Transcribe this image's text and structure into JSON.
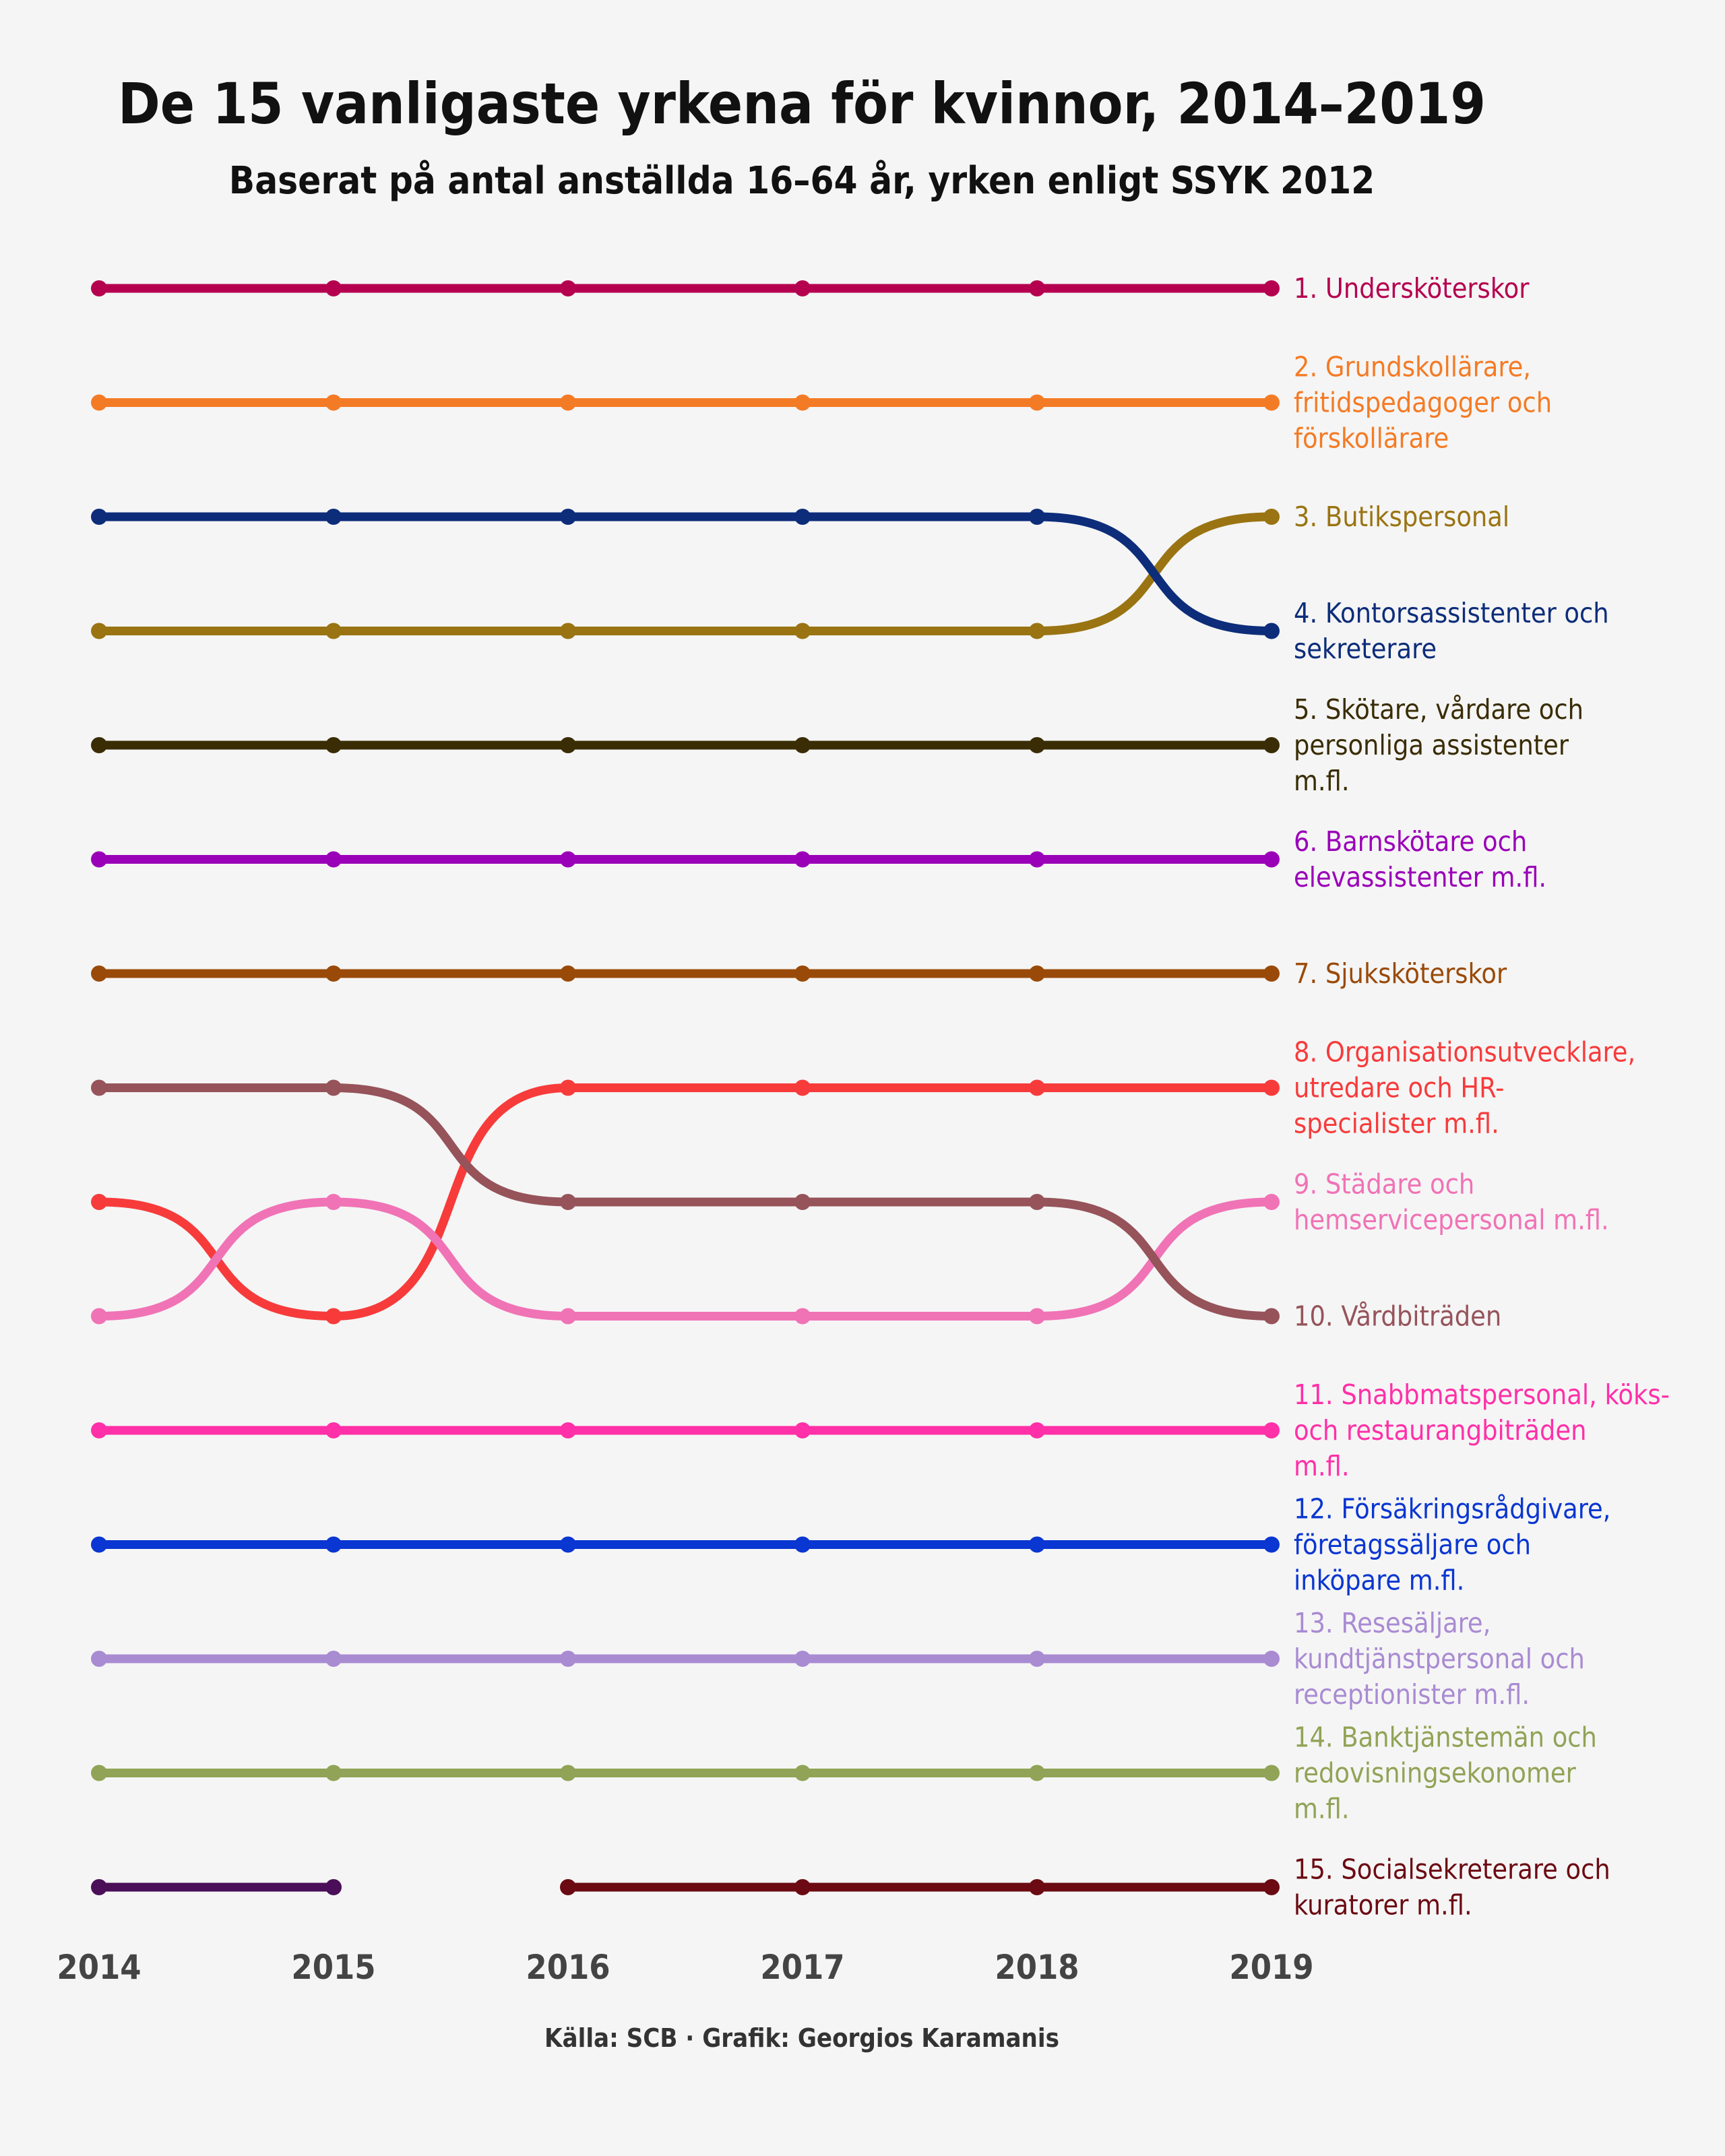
{
  "chart_data": {
    "type": "line",
    "subtype": "bump",
    "title": "De 15 vanligaste yrkena för kvinnor, 2014–2019",
    "subtitle": "Baserat på antal anställda 16–64 år, yrken enligt SSYK 2012",
    "caption": "Källa: SCB · Grafik: Georgios Karamanis",
    "x": [
      2014,
      2015,
      2016,
      2017,
      2018,
      2019
    ],
    "y_axis": "rank (1 at top)",
    "ylim": [
      1,
      15
    ],
    "grid": false,
    "legend": "labels at right end of lines",
    "series": [
      {
        "key": "s1",
        "label_lines": [
          "1. Undersköterskor"
        ],
        "color": "#b5004f",
        "ranks": [
          1,
          1,
          1,
          1,
          1,
          1
        ]
      },
      {
        "key": "s2",
        "label_lines": [
          "2. Grundskollärare,",
          "fritidspedagoger och",
          "förskollärare"
        ],
        "color": "#f47b25",
        "ranks": [
          2,
          2,
          2,
          2,
          2,
          2
        ]
      },
      {
        "key": "s3",
        "label_lines": [
          "3. Butikspersonal"
        ],
        "color": "#9a7412",
        "ranks": [
          4,
          4,
          4,
          4,
          4,
          3
        ]
      },
      {
        "key": "s4",
        "label_lines": [
          "4. Kontorsassistenter och",
          "sekreterare"
        ],
        "color": "#0d2d7a",
        "ranks": [
          3,
          3,
          3,
          3,
          3,
          4
        ]
      },
      {
        "key": "s5",
        "label_lines": [
          "5. Skötare, vårdare och",
          "personliga assistenter",
          "m.fl."
        ],
        "color": "#3a2d05",
        "ranks": [
          5,
          5,
          5,
          5,
          5,
          5
        ]
      },
      {
        "key": "s6",
        "label_lines": [
          "6. Barnskötare och",
          "elevassistenter m.fl."
        ],
        "color": "#9a00b8",
        "ranks": [
          6,
          6,
          6,
          6,
          6,
          6
        ]
      },
      {
        "key": "s7",
        "label_lines": [
          "7. Sjuksköterskor"
        ],
        "color": "#9a4a08",
        "ranks": [
          7,
          7,
          7,
          7,
          7,
          7
        ]
      },
      {
        "key": "s8",
        "label_lines": [
          "8. Organisationsutvecklare,",
          "utredare och HR-",
          "specialister m.fl."
        ],
        "color": "#f73b3b",
        "ranks": [
          9,
          10,
          8,
          8,
          8,
          8
        ]
      },
      {
        "key": "s9",
        "label_lines": [
          "9. Städare och",
          "hemservicepersonal m.fl."
        ],
        "color": "#f073b6",
        "ranks": [
          10,
          9,
          10,
          10,
          10,
          9
        ]
      },
      {
        "key": "s10",
        "label_lines": [
          "10. Vårdbiträden"
        ],
        "color": "#96535a",
        "ranks": [
          8,
          8,
          9,
          9,
          9,
          10
        ]
      },
      {
        "key": "s11",
        "label_lines": [
          "11. Snabbmatspersonal, köks-",
          "och restaurangbiträden",
          "m.fl."
        ],
        "color": "#ff30a8",
        "ranks": [
          11,
          11,
          11,
          11,
          11,
          11
        ]
      },
      {
        "key": "s12",
        "label_lines": [
          "12. Försäkringsrådgivare,",
          "företagssäljare och",
          "inköpare m.fl."
        ],
        "color": "#0a36d1",
        "ranks": [
          12,
          12,
          12,
          12,
          12,
          12
        ]
      },
      {
        "key": "s13",
        "label_lines": [
          "13. Resesäljare,",
          "kundtjänstpersonal och",
          "receptionister m.fl."
        ],
        "color": "#a98bd2",
        "ranks": [
          13,
          13,
          13,
          13,
          13,
          13
        ]
      },
      {
        "key": "s14",
        "label_lines": [
          "14. Banktjänstemän och",
          "redovisningsekonomer",
          "m.fl."
        ],
        "color": "#91a356",
        "ranks": [
          14,
          14,
          14,
          14,
          14,
          14
        ]
      },
      {
        "key": "s15",
        "label_lines": [
          "15. Socialsekreterare och",
          "kuratorer m.fl."
        ],
        "color": "#6b0a12",
        "ranks": [
          null,
          null,
          15,
          15,
          15,
          15
        ]
      },
      {
        "key": "s16",
        "label_lines": [],
        "color": "#4a0f58",
        "ranks": [
          15,
          15,
          null,
          null,
          null,
          null
        ]
      }
    ]
  }
}
